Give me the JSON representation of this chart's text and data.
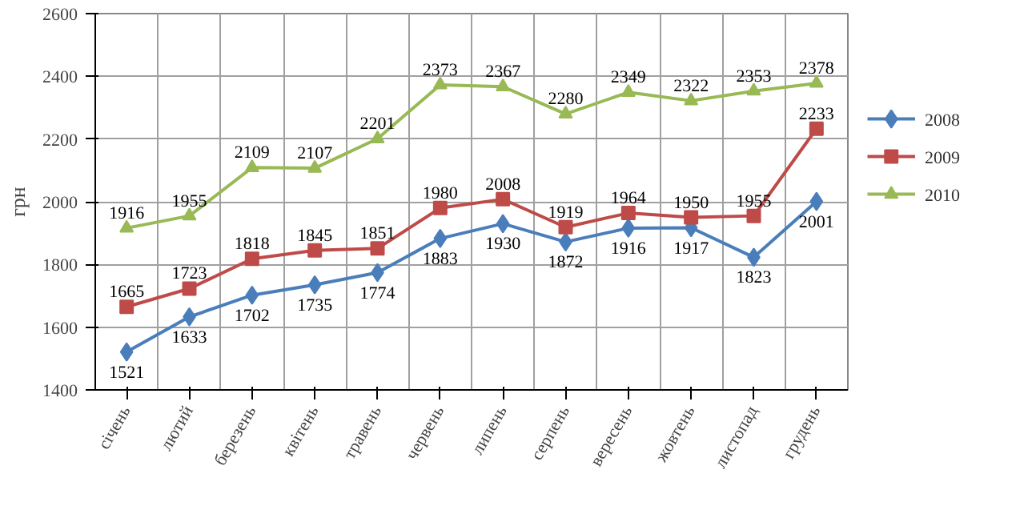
{
  "chart_data": {
    "type": "line",
    "ylabel": "грн",
    "categories": [
      "січень",
      "лютий",
      "березень",
      "квітень",
      "травень",
      "червень",
      "липень",
      "серпень",
      "вересень",
      "жовтень",
      "листопад",
      "грудень"
    ],
    "series": [
      {
        "name": "2008",
        "color": "#4a7ebb",
        "marker": "diamond",
        "values": [
          1521,
          1633,
          1702,
          1735,
          1774,
          1883,
          1930,
          1872,
          1916,
          1917,
          1823,
          2001
        ]
      },
      {
        "name": "2009",
        "color": "#be4b48",
        "marker": "square",
        "values": [
          1665,
          1723,
          1818,
          1845,
          1851,
          1980,
          2008,
          1919,
          1964,
          1950,
          1955,
          2233
        ]
      },
      {
        "name": "2010",
        "color": "#98b954",
        "marker": "triangle",
        "values": [
          1916,
          1955,
          2109,
          2107,
          2201,
          2373,
          2367,
          2280,
          2349,
          2322,
          2353,
          2378
        ]
      }
    ],
    "ylim": [
      1400,
      2600
    ],
    "yticks": [
      1400,
      1600,
      1800,
      2000,
      2200,
      2400,
      2600
    ],
    "grid": true,
    "legend": "right",
    "data_labels": true,
    "line_style": "solid"
  }
}
